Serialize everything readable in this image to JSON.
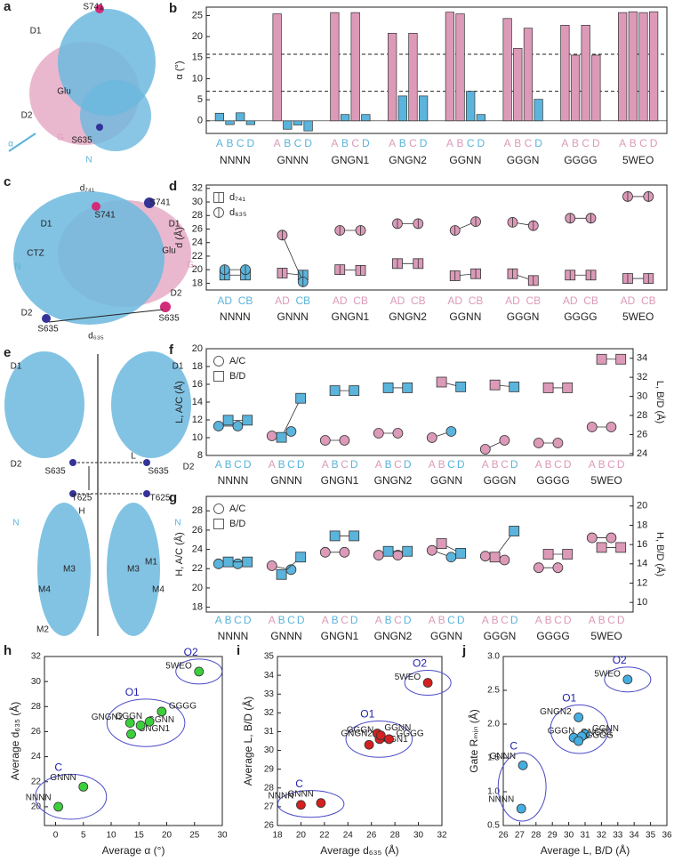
{
  "chart_data": [
    {
      "type": "bar",
      "panel": "b",
      "ylabel": "α (°)",
      "groups": [
        "NNNN",
        "GNNN",
        "GNGN1",
        "GNGN2",
        "GGNN",
        "GGGN",
        "GGGG",
        "5WEO"
      ],
      "subunits": [
        "A",
        "B",
        "C",
        "D"
      ],
      "values": [
        [
          1.8,
          -0.9,
          1.9,
          -0.9
        ],
        [
          25.4,
          -2.0,
          -1.0,
          -2.4
        ],
        [
          25.7,
          1.5,
          25.7,
          1.5
        ],
        [
          20.8,
          5.9,
          20.8,
          5.9
        ],
        [
          25.8,
          25.4,
          7.0,
          1.5
        ],
        [
          24.3,
          17.2,
          22.0,
          5.1
        ],
        [
          22.7,
          15.6,
          22.7,
          15.6
        ],
        [
          25.7,
          25.9,
          25.7,
          25.9
        ]
      ],
      "colors": [
        [
          "#5ab4dc",
          "#5ab4dc",
          "#5ab4dc",
          "#5ab4dc"
        ],
        [
          "#dc9ab8",
          "#5ab4dc",
          "#5ab4dc",
          "#5ab4dc"
        ],
        [
          "#dc9ab8",
          "#5ab4dc",
          "#dc9ab8",
          "#5ab4dc"
        ],
        [
          "#dc9ab8",
          "#5ab4dc",
          "#dc9ab8",
          "#5ab4dc"
        ],
        [
          "#dc9ab8",
          "#dc9ab8",
          "#5ab4dc",
          "#5ab4dc"
        ],
        [
          "#dc9ab8",
          "#dc9ab8",
          "#dc9ab8",
          "#5ab4dc"
        ],
        [
          "#dc9ab8",
          "#dc9ab8",
          "#dc9ab8",
          "#dc9ab8"
        ],
        [
          "#dc9ab8",
          "#dc9ab8",
          "#dc9ab8",
          "#dc9ab8"
        ]
      ],
      "hlines": [
        15.8,
        7.0
      ],
      "ylim": [
        -3,
        27
      ],
      "yticks": [
        0,
        5,
        10,
        15,
        20,
        25
      ]
    },
    {
      "type": "paired",
      "panel": "d",
      "ylabel": "d (Å)",
      "groups": [
        "NNNN",
        "GNNN",
        "GNGN1",
        "GNGN2",
        "GGNN",
        "GGGN",
        "GGGG",
        "5WEO"
      ],
      "subunits": [
        "AD",
        "CB"
      ],
      "legend": "top-left",
      "series": [
        {
          "name": "d₇₄₁",
          "marker": "square",
          "values": [
            [
              19.2,
              19.2
            ],
            [
              19.5,
              19.2
            ],
            [
              20.0,
              19.9
            ],
            [
              20.9,
              20.9
            ],
            [
              19.1,
              19.4
            ],
            [
              19.4,
              18.4
            ],
            [
              19.2,
              19.2
            ],
            [
              18.7,
              18.7
            ]
          ],
          "colors": [
            [
              "#5ab4dc",
              "#5ab4dc"
            ],
            [
              "#dc9ab8",
              "#5ab4dc"
            ],
            [
              "#dc9ab8",
              "#dc9ab8"
            ],
            [
              "#dc9ab8",
              "#dc9ab8"
            ],
            [
              "#dc9ab8",
              "#dc9ab8"
            ],
            [
              "#dc9ab8",
              "#dc9ab8"
            ],
            [
              "#dc9ab8",
              "#dc9ab8"
            ],
            [
              "#dc9ab8",
              "#dc9ab8"
            ]
          ]
        },
        {
          "name": "d₆₃₅",
          "marker": "circle",
          "values": [
            [
              20.0,
              20.0
            ],
            [
              25.1,
              18.2
            ],
            [
              25.8,
              25.8
            ],
            [
              26.8,
              26.8
            ],
            [
              25.8,
              27.1
            ],
            [
              27.0,
              26.5
            ],
            [
              27.6,
              27.6
            ],
            [
              30.8,
              30.8
            ]
          ],
          "colors": [
            [
              "#5ab4dc",
              "#5ab4dc"
            ],
            [
              "#dc9ab8",
              "#5ab4dc"
            ],
            [
              "#dc9ab8",
              "#dc9ab8"
            ],
            [
              "#dc9ab8",
              "#dc9ab8"
            ],
            [
              "#dc9ab8",
              "#dc9ab8"
            ],
            [
              "#dc9ab8",
              "#dc9ab8"
            ],
            [
              "#dc9ab8",
              "#dc9ab8"
            ],
            [
              "#dc9ab8",
              "#dc9ab8"
            ]
          ]
        }
      ],
      "ylim": [
        17,
        32.5
      ],
      "yticks": [
        18,
        20,
        22,
        24,
        26,
        28,
        30,
        32
      ]
    },
    {
      "type": "dual",
      "panel": "f",
      "ylabel": "L, A/C (Å)",
      "y2label": "L, B/D (Å)",
      "groups": [
        "NNNN",
        "GNNN",
        "GNGN1",
        "GNGN2",
        "GGNN",
        "GGGN",
        "GGGG",
        "5WEO"
      ],
      "subunits": [
        "A",
        "B",
        "C",
        "D"
      ],
      "legend": "top-left",
      "series": [
        {
          "name": "A/C",
          "marker": "circle",
          "axis": "y",
          "values": [
            [
              11.3,
              11.3
            ],
            [
              10.2,
              10.7
            ],
            [
              9.7,
              9.7
            ],
            [
              10.5,
              10.5
            ],
            [
              10.0,
              10.7
            ],
            [
              8.7,
              9.7
            ],
            [
              9.4,
              9.4
            ],
            [
              11.2,
              11.2
            ]
          ],
          "colors": [
            [
              "#5ab4dc",
              "#5ab4dc"
            ],
            [
              "#dc9ab8",
              "#5ab4dc"
            ],
            [
              "#dc9ab8",
              "#dc9ab8"
            ],
            [
              "#dc9ab8",
              "#dc9ab8"
            ],
            [
              "#dc9ab8",
              "#5ab4dc"
            ],
            [
              "#dc9ab8",
              "#dc9ab8"
            ],
            [
              "#dc9ab8",
              "#dc9ab8"
            ],
            [
              "#dc9ab8",
              "#dc9ab8"
            ]
          ]
        },
        {
          "name": "B/D",
          "marker": "square",
          "axis": "y2",
          "values": [
            [
              27.5,
              27.5
            ],
            [
              25.7,
              29.8
            ],
            [
              30.6,
              30.6
            ],
            [
              30.9,
              30.9
            ],
            [
              31.5,
              31.0
            ],
            [
              31.2,
              31.0
            ],
            [
              30.9,
              30.9
            ],
            [
              33.9,
              33.9
            ]
          ],
          "colors": [
            [
              "#5ab4dc",
              "#5ab4dc"
            ],
            [
              "#5ab4dc",
              "#5ab4dc"
            ],
            [
              "#5ab4dc",
              "#5ab4dc"
            ],
            [
              "#5ab4dc",
              "#5ab4dc"
            ],
            [
              "#dc9ab8",
              "#5ab4dc"
            ],
            [
              "#dc9ab8",
              "#5ab4dc"
            ],
            [
              "#dc9ab8",
              "#dc9ab8"
            ],
            [
              "#dc9ab8",
              "#dc9ab8"
            ]
          ]
        }
      ],
      "ylim": [
        8,
        20
      ],
      "yticks": [
        8,
        10,
        12,
        14,
        16,
        18,
        20
      ],
      "y2lim": [
        23.8,
        35
      ],
      "y2ticks": [
        24,
        26,
        28,
        30,
        32,
        34
      ]
    },
    {
      "type": "dual",
      "panel": "g",
      "ylabel": "H, A/C (Å)",
      "y2label": "H, B/D (Å)",
      "groups": [
        "NNNN",
        "GNNN",
        "GNGN1",
        "GNGN2",
        "GGNN",
        "GGGN",
        "GGGG",
        "5WEO"
      ],
      "subunits": [
        "A",
        "B",
        "C",
        "D"
      ],
      "legend": "top-left",
      "series": [
        {
          "name": "A/C",
          "marker": "circle",
          "axis": "y",
          "values": [
            [
              22.5,
              22.5
            ],
            [
              22.3,
              21.9
            ],
            [
              23.7,
              23.7
            ],
            [
              23.4,
              23.4
            ],
            [
              23.9,
              23.2
            ],
            [
              23.3,
              22.9
            ],
            [
              22.1,
              22.1
            ],
            [
              25.2,
              25.2
            ]
          ],
          "colors": [
            [
              "#5ab4dc",
              "#5ab4dc"
            ],
            [
              "#dc9ab8",
              "#5ab4dc"
            ],
            [
              "#dc9ab8",
              "#dc9ab8"
            ],
            [
              "#dc9ab8",
              "#dc9ab8"
            ],
            [
              "#dc9ab8",
              "#5ab4dc"
            ],
            [
              "#dc9ab8",
              "#dc9ab8"
            ],
            [
              "#dc9ab8",
              "#dc9ab8"
            ],
            [
              "#dc9ab8",
              "#dc9ab8"
            ]
          ]
        },
        {
          "name": "B/D",
          "marker": "square",
          "axis": "y2",
          "values": [
            [
              14.2,
              14.2
            ],
            [
              12.9,
              14.7
            ],
            [
              16.9,
              16.9
            ],
            [
              15.3,
              15.3
            ],
            [
              16.1,
              15.1
            ],
            [
              14.7,
              17.4
            ],
            [
              15.0,
              15.0
            ],
            [
              15.7,
              15.7
            ]
          ],
          "colors": [
            [
              "#5ab4dc",
              "#5ab4dc"
            ],
            [
              "#5ab4dc",
              "#5ab4dc"
            ],
            [
              "#5ab4dc",
              "#5ab4dc"
            ],
            [
              "#5ab4dc",
              "#5ab4dc"
            ],
            [
              "#dc9ab8",
              "#5ab4dc"
            ],
            [
              "#dc9ab8",
              "#5ab4dc"
            ],
            [
              "#dc9ab8",
              "#dc9ab8"
            ],
            [
              "#dc9ab8",
              "#dc9ab8"
            ]
          ]
        }
      ],
      "ylim": [
        17.5,
        29.5
      ],
      "yticks": [
        18,
        20,
        22,
        24,
        26,
        28
      ],
      "y2lim": [
        9,
        21
      ],
      "y2ticks": [
        10,
        12,
        14,
        16,
        18,
        20
      ]
    },
    {
      "type": "scatter",
      "panel": "h",
      "xlabel": "Average α (°)",
      "ylabel": "Average d₆₃₅ (Å)",
      "color": "#3ccf3c",
      "labels": [
        "NNNN",
        "GNNN",
        "GNGN1",
        "GNGN2",
        "GGNN",
        "GGGN",
        "GGGG",
        "5WEO"
      ],
      "x": [
        0.5,
        5.0,
        13.6,
        13.4,
        15.3,
        16.9,
        19.1,
        25.8
      ],
      "y": [
        20.0,
        21.6,
        25.8,
        26.7,
        26.5,
        26.8,
        27.6,
        30.8
      ],
      "clusters": [
        {
          "label": "C",
          "members": [
            "NNNN",
            "GNNN"
          ]
        },
        {
          "label": "O1",
          "members": [
            "GNGN1",
            "GNGN2",
            "GGNN",
            "GGGN",
            "GGGG"
          ]
        },
        {
          "label": "O2",
          "members": [
            "5WEO"
          ]
        }
      ],
      "xlim": [
        -2,
        30
      ],
      "xticks": [
        0,
        5,
        10,
        15,
        20,
        25,
        30
      ],
      "ylim": [
        18.5,
        32
      ],
      "yticks": [
        20,
        22,
        24,
        26,
        28,
        30,
        32
      ]
    },
    {
      "type": "scatter",
      "panel": "i",
      "xlabel": "Average d₆₃₅ (Å)",
      "ylabel": "Average L, B/D (Å)",
      "color": "#d42020",
      "labels": [
        "NNNN",
        "GNNN",
        "GNGN1",
        "GNGN2",
        "GGNN",
        "GGGN",
        "GGGG",
        "5WEO"
      ],
      "x": [
        20.0,
        21.7,
        25.8,
        26.7,
        26.5,
        26.8,
        27.5,
        30.8
      ],
      "y": [
        27.1,
        27.2,
        30.3,
        30.6,
        30.9,
        30.8,
        30.6,
        33.6
      ],
      "clusters": [
        {
          "label": "C",
          "members": [
            "NNNN",
            "GNNN"
          ]
        },
        {
          "label": "O1",
          "members": [
            "GNGN1",
            "GNGN2",
            "GGNN",
            "GGGN",
            "GGGG"
          ]
        },
        {
          "label": "O2",
          "members": [
            "5WEO"
          ]
        }
      ],
      "xlim": [
        18,
        32
      ],
      "xticks": [
        18,
        20,
        22,
        24,
        26,
        28,
        30,
        32
      ],
      "ylim": [
        26,
        35
      ],
      "yticks": [
        26,
        27,
        28,
        29,
        30,
        31,
        32,
        33,
        34,
        35
      ]
    },
    {
      "type": "scatter",
      "panel": "j",
      "xlabel": "Average L, B/D (Å)",
      "ylabel": "Gate Rₘᵢₙ (Å)",
      "color": "#45aee0",
      "labels": [
        "NNNN",
        "GNNN",
        "GNGN1",
        "GNGN2",
        "GGNN",
        "GGGN",
        "GGGG",
        "5WEO"
      ],
      "x": [
        27.1,
        27.2,
        30.3,
        30.6,
        31.0,
        30.8,
        30.6,
        33.6
      ],
      "y": [
        0.75,
        1.39,
        1.8,
        2.1,
        1.85,
        1.82,
        1.75,
        2.66
      ],
      "clusters": [
        {
          "label": "C",
          "members": [
            "NNNN",
            "GNNN"
          ]
        },
        {
          "label": "O1",
          "members": [
            "GNGN1",
            "GNGN2",
            "GGNN",
            "GGGN",
            "GGGG"
          ]
        },
        {
          "label": "O2",
          "members": [
            "5WEO"
          ]
        }
      ],
      "xlim": [
        26,
        36
      ],
      "xticks": [
        26,
        27,
        28,
        29,
        30,
        31,
        32,
        33,
        34,
        35,
        36
      ],
      "ylim": [
        0.5,
        3.0
      ],
      "yticks": [
        0.5,
        {
          "value": 1,
          "label": "1.0"
        },
        1.5,
        {
          "value": 2,
          "label": "2.0"
        },
        2.5,
        {
          "value": 3,
          "label": "3.0"
        }
      ]
    }
  ],
  "images": [
    {
      "panel": "a",
      "labels": [
        "S741",
        "D1",
        "Glu",
        "D2",
        "α",
        "G",
        "S635",
        "N"
      ]
    },
    {
      "panel": "c",
      "labels": [
        "d₇₄₁",
        "S741",
        "S741",
        "D1",
        "D1",
        "Glu",
        "CTZ",
        "G",
        "N",
        "D2",
        "D2",
        "S635",
        "S635",
        "d₆₃₅"
      ]
    },
    {
      "panel": "e",
      "labels": [
        "D1",
        "D1",
        "D2",
        "D2",
        "S635",
        "S635",
        "L",
        "H",
        "N",
        "N",
        "T625",
        "T625",
        "M3",
        "M3",
        "M4",
        "M4",
        "M2",
        "M1"
      ]
    }
  ]
}
